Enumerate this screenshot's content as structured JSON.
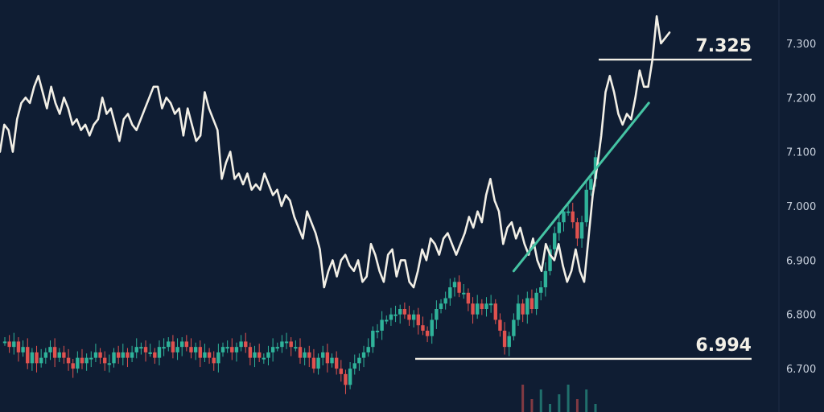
{
  "colors": {
    "background": "#0f1d33",
    "price_line": "#f2efe6",
    "trendline": "#45c4a4",
    "up": "#2fb39a",
    "down": "#e0524f",
    "level_line": "#f2efe6",
    "axis_text": "#c9d1dd"
  },
  "chart_data": {
    "type": "line",
    "title": "",
    "xlabel": "",
    "ylabel": "",
    "grid": false,
    "ylim": [
      6.62,
      7.38
    ],
    "yticks": [
      "6.700",
      "6.800",
      "6.900",
      "7.000",
      "7.100",
      "7.200",
      "7.300"
    ],
    "levels": [
      {
        "value": 7.325,
        "label": "7.325",
        "ref_y": 7.27
      },
      {
        "value": 6.994,
        "label": "6.994",
        "ref_y": 6.718
      }
    ],
    "trendline": {
      "from": [
        112,
        6.88
      ],
      "to": [
        140,
        7.19
      ]
    },
    "series": [
      {
        "type": "line",
        "values": [
          7.1,
          7.15,
          7.14,
          7.1,
          7.16,
          7.19,
          7.2,
          7.19,
          7.22,
          7.24,
          7.21,
          7.18,
          7.22,
          7.19,
          7.17,
          7.2,
          7.18,
          7.15,
          7.16,
          7.14,
          7.15,
          7.13,
          7.15,
          7.16,
          7.2,
          7.17,
          7.18,
          7.15,
          7.12,
          7.16,
          7.17,
          7.15,
          7.14,
          7.16,
          7.18,
          7.2,
          7.22,
          7.22,
          7.18,
          7.2,
          7.19,
          7.17,
          7.18,
          7.13,
          7.18,
          7.15,
          7.12,
          7.13,
          7.21,
          7.18,
          7.16,
          7.14,
          7.05,
          7.08,
          7.1,
          7.05,
          7.06,
          7.04,
          7.06,
          7.03,
          7.04,
          7.03,
          7.06,
          7.04,
          7.02,
          7.03,
          7.0,
          7.02,
          7.01,
          6.98,
          6.96,
          6.94,
          6.99,
          6.97,
          6.95,
          6.92,
          6.85,
          6.88,
          6.9,
          6.87,
          6.9,
          6.91,
          6.89,
          6.88,
          6.9,
          6.86,
          6.87,
          6.93,
          6.91,
          6.88,
          6.86,
          6.91,
          6.92,
          6.87,
          6.9,
          6.9,
          6.86,
          6.85,
          6.88,
          6.92,
          6.9,
          6.94,
          6.93,
          6.91,
          6.94,
          6.95,
          6.93,
          6.91,
          6.93,
          6.95,
          6.98,
          6.96,
          6.99,
          6.97,
          7.02,
          7.05,
          7.01,
          6.99,
          6.93,
          6.96,
          6.97,
          6.94,
          6.96,
          6.93,
          6.91,
          6.94,
          6.9,
          6.88,
          6.93,
          6.91,
          6.9,
          6.93,
          6.89,
          6.86,
          6.88,
          6.92,
          6.88,
          6.86,
          6.94,
          7.02,
          7.07,
          7.13,
          7.21,
          7.24,
          7.21,
          7.17,
          7.15,
          7.17,
          7.16,
          7.2,
          7.25,
          7.22,
          7.22,
          7.27,
          7.35,
          7.3,
          7.31,
          7.32
        ]
      },
      {
        "type": "candlestick",
        "name": "",
        "values": [
          6.75,
          6.74,
          6.75,
          6.73,
          6.74,
          6.71,
          6.73,
          6.71,
          6.72,
          6.73,
          6.74,
          6.72,
          6.73,
          6.72,
          6.71,
          6.7,
          6.72,
          6.71,
          6.72,
          6.72,
          6.73,
          6.72,
          6.71,
          6.71,
          6.73,
          6.72,
          6.73,
          6.72,
          6.73,
          6.74,
          6.74,
          6.73,
          6.73,
          6.72,
          6.74,
          6.74,
          6.75,
          6.73,
          6.74,
          6.75,
          6.74,
          6.73,
          6.74,
          6.72,
          6.73,
          6.72,
          6.71,
          6.73,
          6.74,
          6.74,
          6.73,
          6.74,
          6.75,
          6.74,
          6.72,
          6.73,
          6.72,
          6.72,
          6.73,
          6.74,
          6.74,
          6.75,
          6.75,
          6.74,
          6.74,
          6.72,
          6.73,
          6.72,
          6.7,
          6.72,
          6.73,
          6.71,
          6.72,
          6.7,
          6.69,
          6.67,
          6.7,
          6.71,
          6.72,
          6.73,
          6.74,
          6.77,
          6.77,
          6.79,
          6.79,
          6.8,
          6.8,
          6.81,
          6.8,
          6.79,
          6.8,
          6.78,
          6.77,
          6.76,
          6.79,
          6.81,
          6.82,
          6.83,
          6.85,
          6.86,
          6.84,
          6.84,
          6.82,
          6.8,
          6.82,
          6.81,
          6.82,
          6.82,
          6.79,
          6.77,
          6.74,
          6.76,
          6.79,
          6.82,
          6.8,
          6.83,
          6.81,
          6.84,
          6.85,
          6.88,
          6.92,
          6.95,
          6.97,
          6.99,
          6.99,
          6.97,
          6.94,
          6.97,
          7.03,
          7.05,
          7.09
        ]
      }
    ]
  }
}
